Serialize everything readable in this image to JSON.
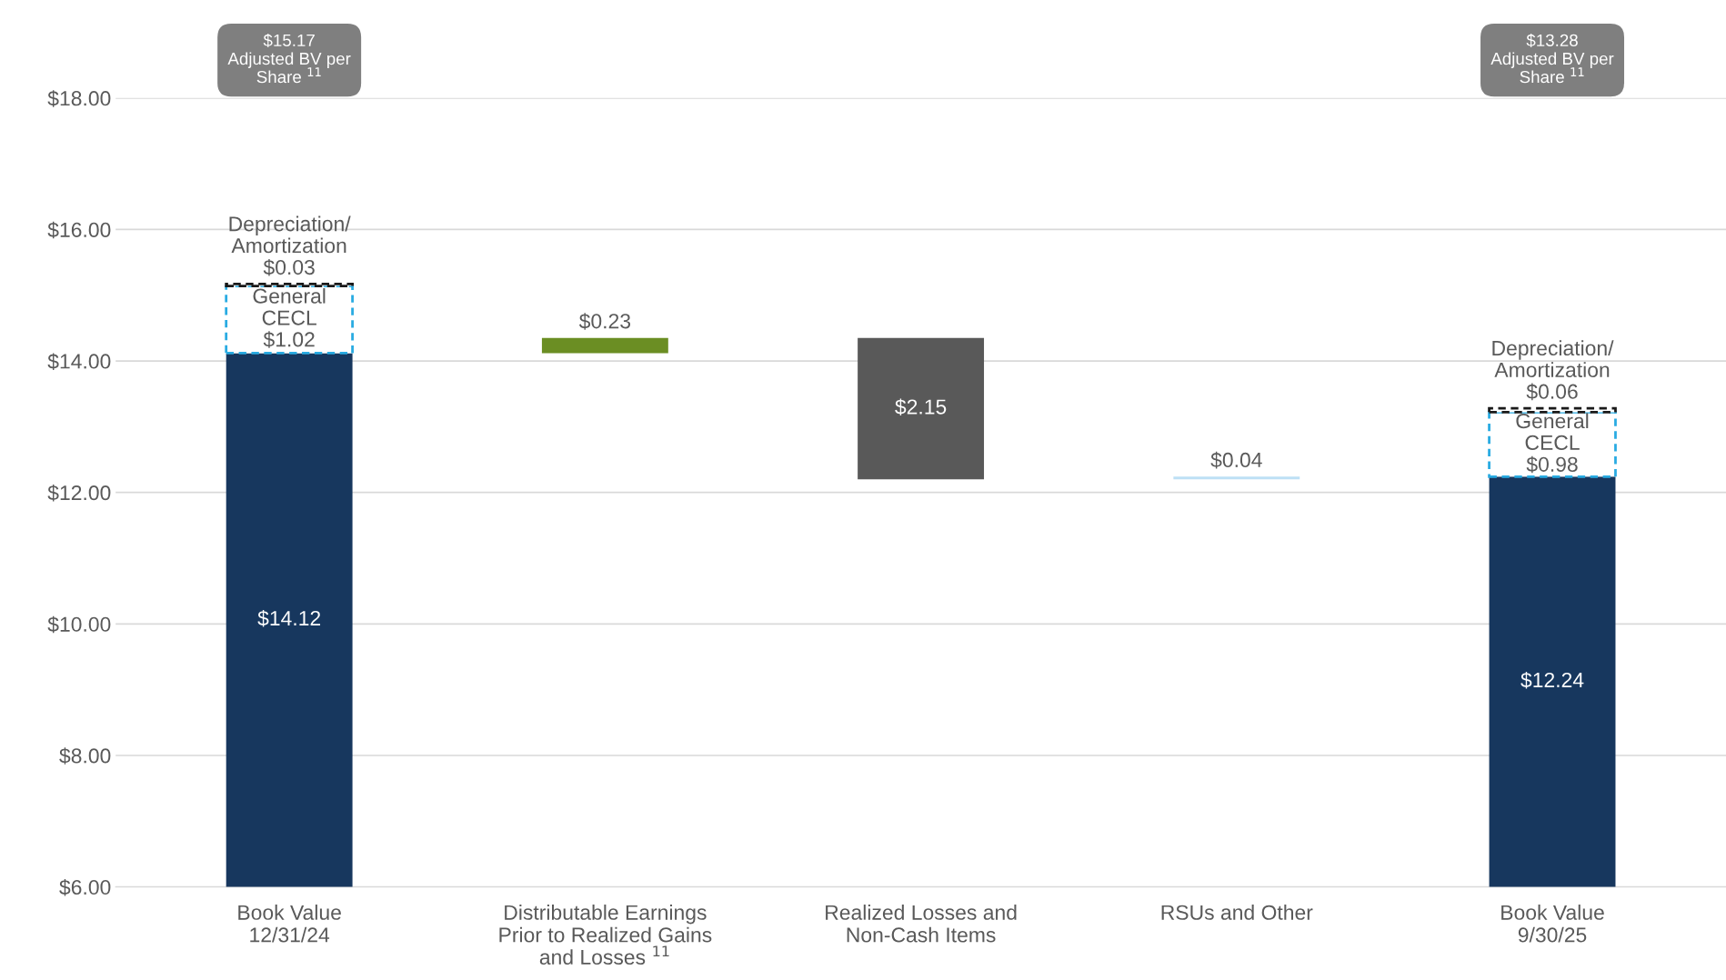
{
  "chart_data": {
    "type": "bar",
    "categories": [
      "Book Value\n12/31/24",
      "Distributable Earnings\nPrior to Realized Gains\nand Losses $^{11}$",
      "Realized Losses and\nNon-Cash Items",
      "RSUs and Other",
      "Book Value\n9/30/25"
    ],
    "series": [
      {
        "color": "#17375e",
        "values": [
          14.12,
          null,
          null,
          null,
          12.24
        ],
        "value_labels": [
          "$14.12",
          null,
          null,
          null,
          "$12.24"
        ]
      },
      {
        "color": "#29abe2",
        "line_style": "dashed",
        "values": [
          1.02,
          null,
          null,
          null,
          0.98
        ],
        "base": [
          14.12,
          null,
          null,
          null,
          12.24
        ],
        "value_labels": [
          "General\nCECL\n$1.02",
          null,
          null,
          null,
          "General\nCECL\n$0.98"
        ]
      },
      {
        "color": "#1a1a1a",
        "line_style": "dashed",
        "values": [
          0.03,
          null,
          null,
          null,
          0.06
        ],
        "base": [
          15.14,
          null,
          null,
          null,
          13.22
        ],
        "value_labels": [
          "Depreciation/\nAmortization\n$0.03",
          null,
          null,
          null,
          "Depreciation/\nAmortization\n$0.06"
        ]
      },
      {
        "colors": [
          null,
          "#6b8e23",
          "#595959",
          "#bde0f5",
          null
        ],
        "values": [
          null,
          0.23,
          -2.15,
          0.04,
          null
        ],
        "base": [
          null,
          14.12,
          14.35,
          12.2,
          null
        ],
        "value_labels": [
          null,
          "$0.23",
          "$2.15",
          "$0.04",
          null
        ]
      }
    ],
    "annotations": [
      "$15.17\nAdjusted BV per\nShare $^{11}$",
      "$13.28\nAdjusted BV per\nShare $^{11}$"
    ],
    "ylim": [
      6,
      18
    ],
    "yticks": [
      {
        "value": 6,
        "label": "$6.00"
      },
      {
        "value": 8,
        "label": "$8.00"
      },
      {
        "value": 10,
        "label": "$10.00"
      },
      {
        "value": 12,
        "label": "$12.00"
      },
      {
        "value": 14,
        "label": "$14.00"
      },
      {
        "value": 16,
        "label": "$16.00"
      },
      {
        "value": 18,
        "label": "$18.00"
      }
    ],
    "stacked": true,
    "grid": "y",
    "legend": false
  }
}
